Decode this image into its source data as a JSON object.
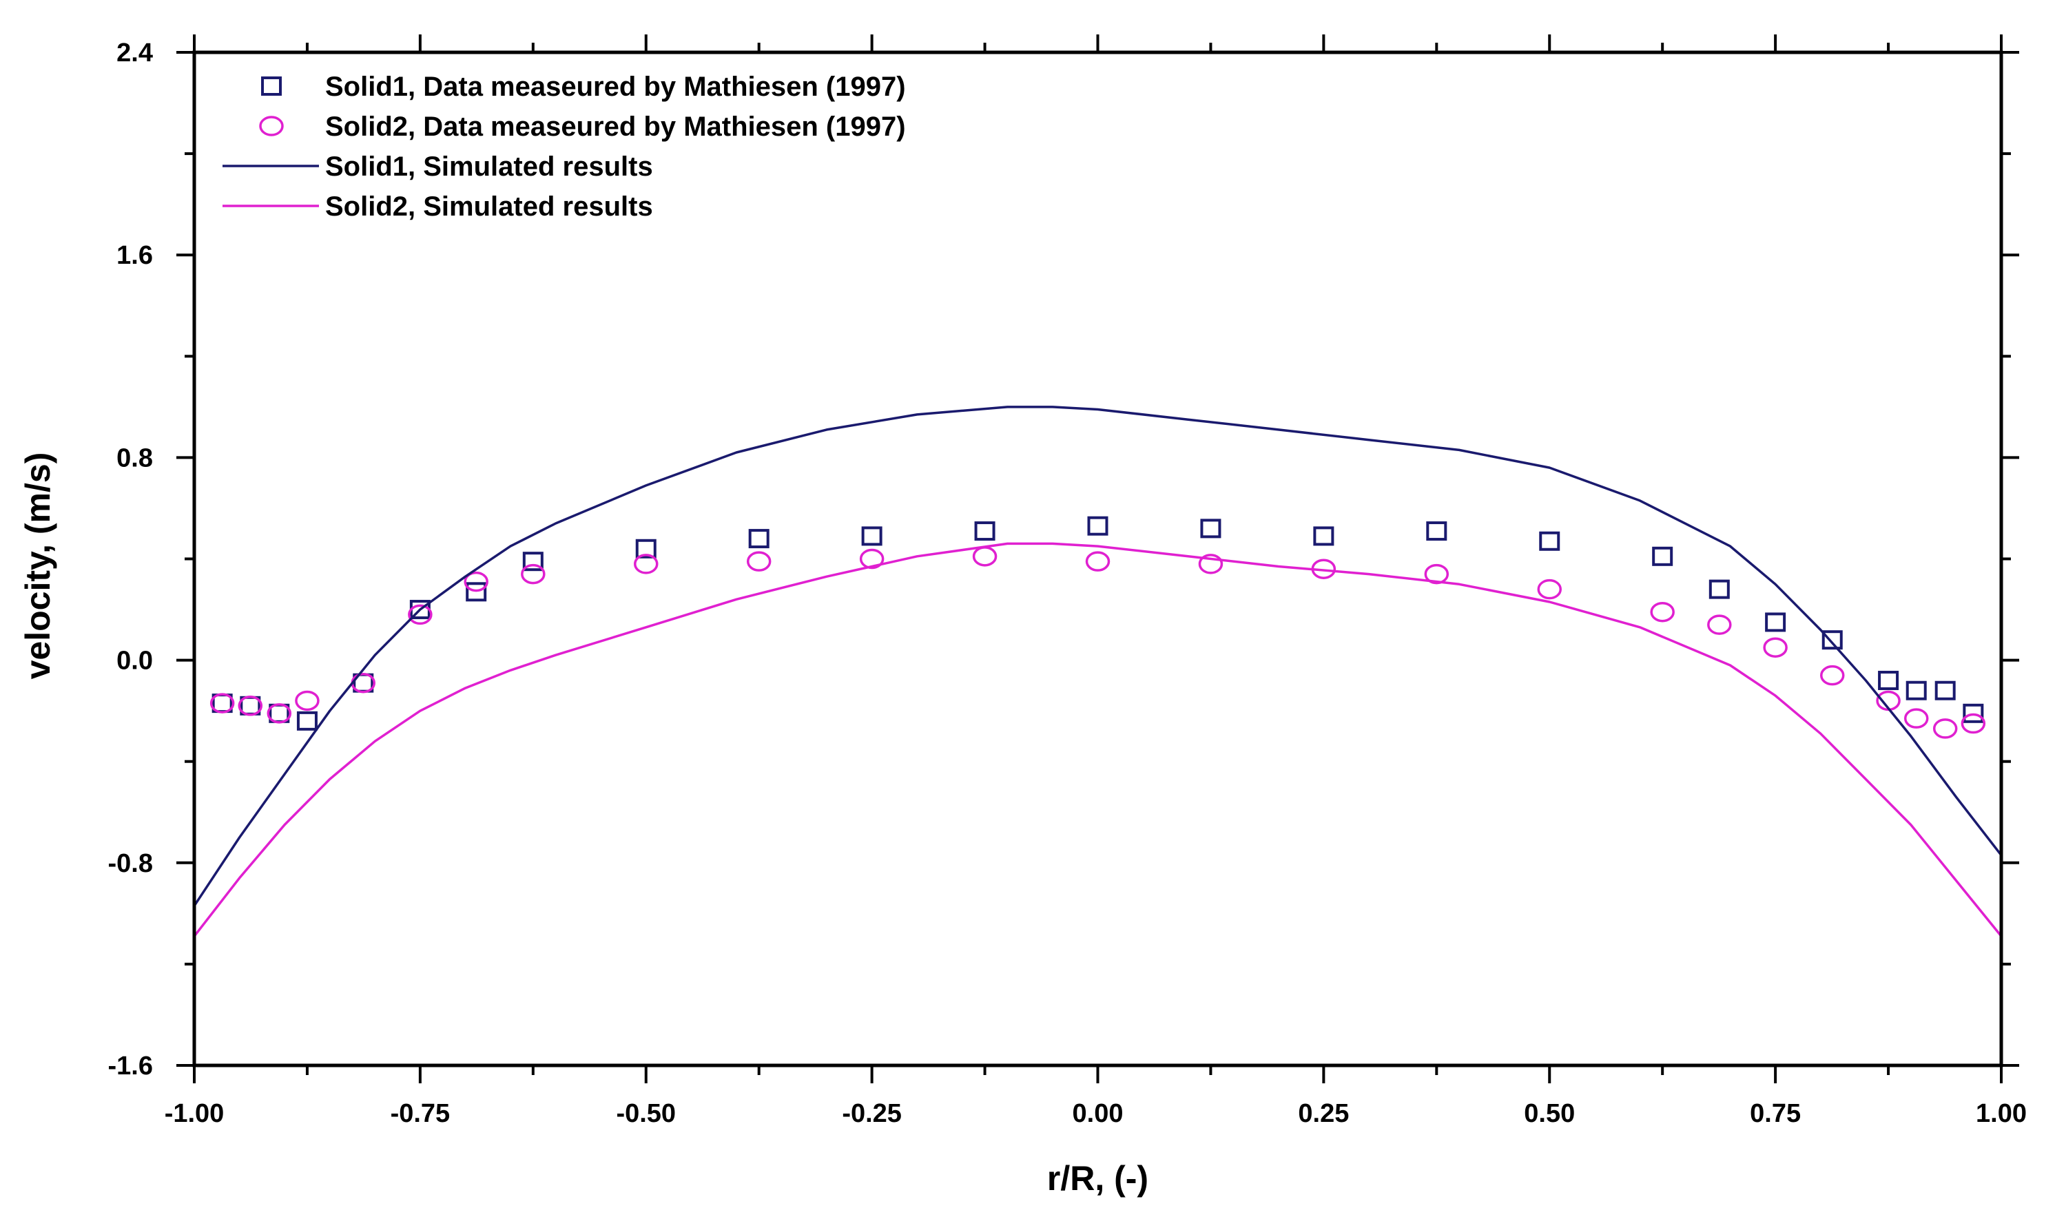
{
  "chart_data": {
    "type": "line",
    "xlabel": "r/R, (-)",
    "ylabel": "velocity, (m/s)",
    "xlim": [
      -1.0,
      1.0
    ],
    "ylim": [
      -1.6,
      2.4
    ],
    "xticks": [
      -1.0,
      -0.75,
      -0.5,
      -0.25,
      0.0,
      0.25,
      0.5,
      0.75,
      1.0
    ],
    "xtick_labels": [
      "-1.00",
      "-0.75",
      "-0.50",
      "-0.25",
      "0.00",
      "0.25",
      "0.50",
      "0.75",
      "1.00"
    ],
    "yticks": [
      -1.6,
      -0.8,
      0.0,
      0.8,
      1.6,
      2.4
    ],
    "ytick_labels": [
      "-1.6",
      "-0.8",
      "0.0",
      "0.8",
      "1.6",
      "2.4"
    ],
    "legend_position": "top-left",
    "grid": false,
    "series": [
      {
        "name": "Solid1, Data measeured by Mathiesen (1997)",
        "kind": "scatter",
        "marker": "square",
        "color": "#1a1a6e",
        "x": [
          -0.969,
          -0.938,
          -0.906,
          -0.875,
          -0.813,
          -0.75,
          -0.688,
          -0.625,
          -0.5,
          -0.375,
          -0.25,
          -0.125,
          0.0,
          0.125,
          0.25,
          0.375,
          0.5,
          0.625,
          0.688,
          0.75,
          0.813,
          0.875,
          0.906,
          0.938,
          0.969
        ],
        "y": [
          -0.17,
          -0.18,
          -0.21,
          -0.24,
          -0.09,
          0.2,
          0.27,
          0.39,
          0.44,
          0.48,
          0.49,
          0.51,
          0.53,
          0.52,
          0.49,
          0.51,
          0.47,
          0.41,
          0.28,
          0.15,
          0.08,
          -0.08,
          -0.12,
          -0.12,
          -0.21
        ]
      },
      {
        "name": "Solid2, Data measeured by Mathiesen (1997)",
        "kind": "scatter",
        "marker": "circle",
        "color": "#e020d0",
        "x": [
          -0.969,
          -0.938,
          -0.906,
          -0.875,
          -0.813,
          -0.75,
          -0.688,
          -0.625,
          -0.5,
          -0.375,
          -0.25,
          -0.125,
          0.0,
          0.125,
          0.25,
          0.375,
          0.5,
          0.625,
          0.688,
          0.75,
          0.813,
          0.875,
          0.906,
          0.938,
          0.969
        ],
        "y": [
          -0.17,
          -0.18,
          -0.21,
          -0.16,
          -0.09,
          0.18,
          0.31,
          0.34,
          0.38,
          0.39,
          0.4,
          0.41,
          0.39,
          0.38,
          0.36,
          0.34,
          0.28,
          0.19,
          0.14,
          0.05,
          -0.06,
          -0.16,
          -0.23,
          -0.27,
          -0.25
        ]
      },
      {
        "name": "Solid1, Simulated results",
        "kind": "line",
        "color": "#1a1a6e",
        "x": [
          -1.0,
          -0.95,
          -0.9,
          -0.85,
          -0.8,
          -0.75,
          -0.7,
          -0.65,
          -0.6,
          -0.5,
          -0.4,
          -0.3,
          -0.2,
          -0.1,
          -0.05,
          0.0,
          0.1,
          0.2,
          0.3,
          0.4,
          0.5,
          0.6,
          0.7,
          0.75,
          0.8,
          0.85,
          0.9,
          0.95,
          1.0
        ],
        "y": [
          -0.97,
          -0.7,
          -0.45,
          -0.2,
          0.02,
          0.2,
          0.33,
          0.45,
          0.54,
          0.69,
          0.82,
          0.91,
          0.97,
          1.0,
          1.0,
          0.99,
          0.95,
          0.91,
          0.87,
          0.83,
          0.76,
          0.63,
          0.45,
          0.3,
          0.12,
          -0.08,
          -0.3,
          -0.54,
          -0.77
        ]
      },
      {
        "name": "Solid2, Simulated results",
        "kind": "line",
        "color": "#e020d0",
        "x": [
          -1.0,
          -0.95,
          -0.9,
          -0.85,
          -0.8,
          -0.75,
          -0.7,
          -0.65,
          -0.6,
          -0.5,
          -0.4,
          -0.3,
          -0.2,
          -0.1,
          -0.05,
          0.0,
          0.1,
          0.2,
          0.3,
          0.4,
          0.5,
          0.6,
          0.7,
          0.75,
          0.8,
          0.85,
          0.9,
          0.95,
          1.0
        ],
        "y": [
          -1.09,
          -0.86,
          -0.65,
          -0.47,
          -0.32,
          -0.2,
          -0.11,
          -0.04,
          0.02,
          0.13,
          0.24,
          0.33,
          0.41,
          0.46,
          0.46,
          0.45,
          0.41,
          0.37,
          0.34,
          0.3,
          0.23,
          0.13,
          -0.02,
          -0.14,
          -0.29,
          -0.47,
          -0.65,
          -0.87,
          -1.09
        ]
      }
    ]
  }
}
